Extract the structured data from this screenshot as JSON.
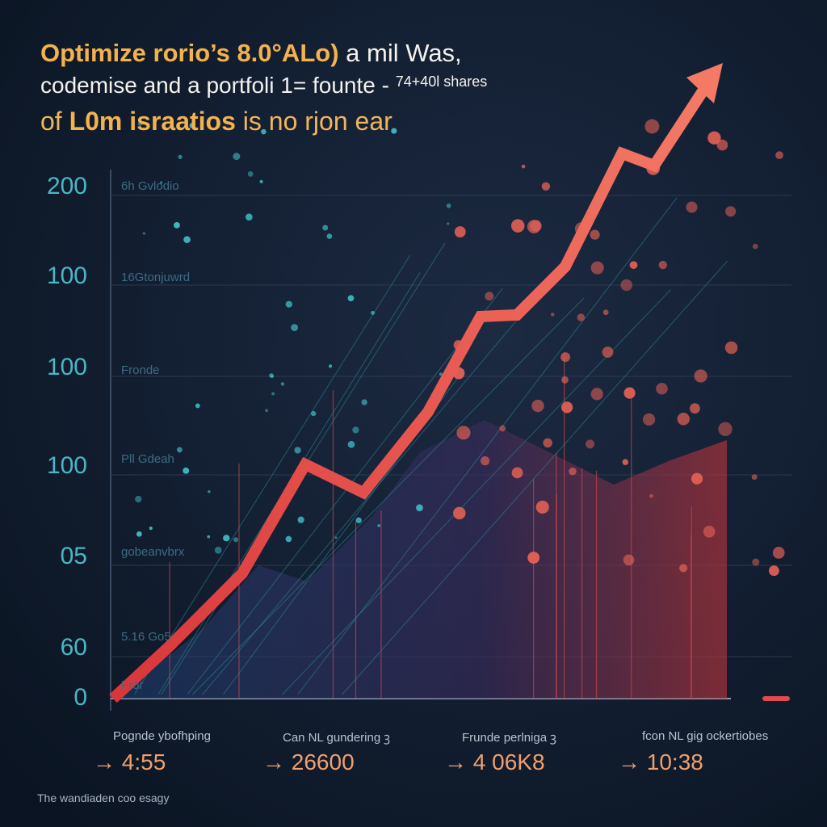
{
  "headline": {
    "line1": [
      "Optimize rorio’s 8.0°ALo)",
      " a mil Was,"
    ],
    "line2": [
      "codemise and a portfoli 1= founte -",
      "74+40l shares"
    ],
    "line3": [
      "of ",
      "L0m israatios",
      " is no rjon ear"
    ]
  },
  "axis_labels": [
    "200",
    "100",
    "100",
    "100",
    "05",
    "60",
    "0"
  ],
  "inline_labels": [
    "6h Gvlodio",
    "16Gtonjuwrd",
    "Fronde",
    "Pll Gdeah",
    "gobeanvbrx",
    "5.16 Go5",
    "Fror"
  ],
  "stats": [
    {
      "caption": "Pognde ybofhping",
      "value": "→ 4:55"
    },
    {
      "caption": "Can NL gundering ꝫ",
      "value": "→ 26600"
    },
    {
      "caption": "Frunde perlniga ꝫ",
      "value": "→ 4 06K8"
    },
    {
      "caption": "fcon NL gig ockertiobes",
      "value": "→ 10:38"
    }
  ],
  "footer": "The wandiaden coo esagy"
}
